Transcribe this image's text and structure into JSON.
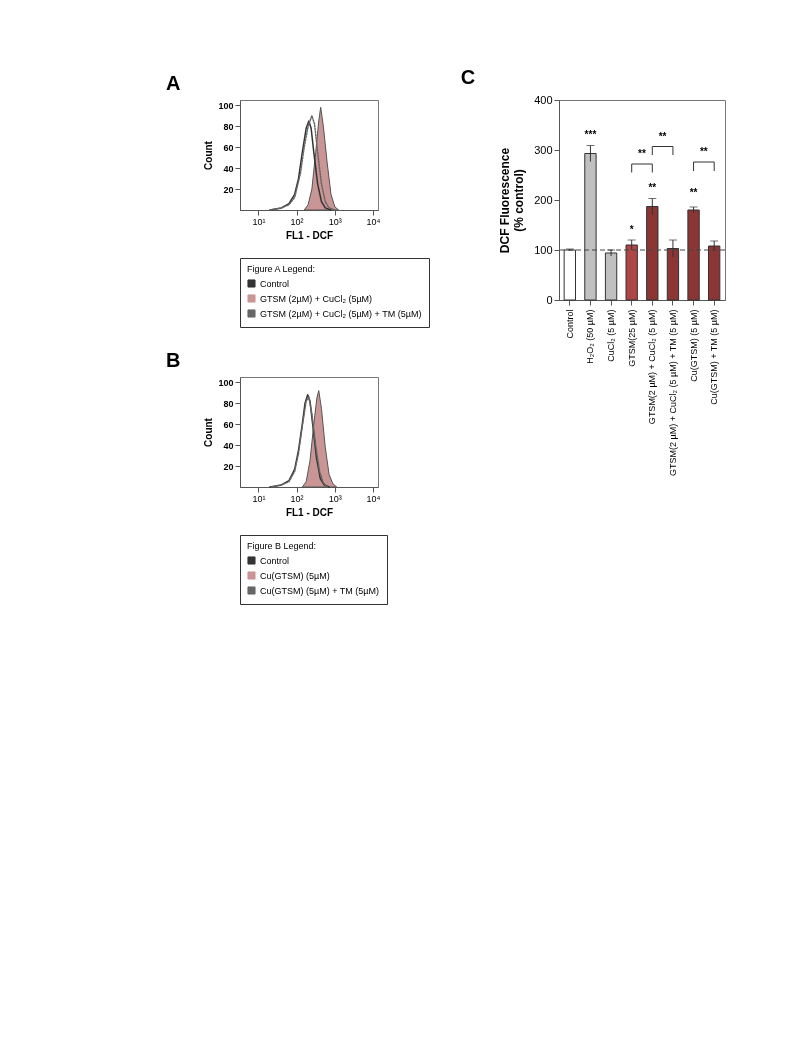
{
  "chart_data": [
    {
      "type": "line",
      "title": "A",
      "xlabel": "FL1 - DCF",
      "ylabel": "Count",
      "legend_title": "Figure A Legend:",
      "legend": "bottom",
      "log": "x",
      "xlim": [
        3.3,
        13500
      ],
      "ylim": [
        0,
        105
      ],
      "xticks": [
        {
          "value": 10,
          "label": "10¹"
        },
        {
          "value": 100,
          "label": "10²"
        },
        {
          "value": 1000,
          "label": "10³"
        },
        {
          "value": 10000,
          "label": "10⁴"
        }
      ],
      "yticks": [
        20,
        40,
        60,
        80,
        100
      ],
      "series": [
        {
          "name": "Control",
          "type": "line",
          "color": "#333333",
          "line_style": "solid",
          "x": [
            20,
            40,
            63,
            89,
            112,
            141,
            178,
            209,
            240,
            282,
            355,
            447,
            562,
            794
          ],
          "values": [
            0,
            2,
            6,
            15,
            30,
            55,
            78,
            85,
            78,
            55,
            25,
            8,
            2,
            0
          ]
        },
        {
          "name": "GTSM (2µM) + CuCl₂ (5µM)",
          "type": "area",
          "color": "#c99595",
          "x": [
            158,
            200,
            251,
            316,
            380,
            427,
            501,
            631,
            794,
            1000,
            1259
          ],
          "values": [
            0,
            5,
            20,
            55,
            85,
            98,
            80,
            45,
            15,
            3,
            0
          ]
        },
        {
          "name": "GTSM (2µM) + CuCl₂ (5µM) + TM (5µM)",
          "type": "line",
          "color": "#666666",
          "line_style": "dotted",
          "x": [
            20,
            40,
            63,
            89,
            126,
            158,
            200,
            251,
            295,
            355,
            447,
            562,
            708,
            1000
          ],
          "values": [
            0,
            2,
            5,
            12,
            35,
            60,
            80,
            90,
            82,
            55,
            25,
            8,
            2,
            0
          ]
        }
      ]
    },
    {
      "type": "line",
      "title": "B",
      "xlabel": "FL1 - DCF",
      "ylabel": "Count",
      "legend_title": "Figure B Legend:",
      "legend": "bottom",
      "log": "x",
      "xlim": [
        3.3,
        13500
      ],
      "ylim": [
        0,
        105
      ],
      "xticks": [
        {
          "value": 10,
          "label": "10¹"
        },
        {
          "value": 100,
          "label": "10²"
        },
        {
          "value": 1000,
          "label": "10³"
        },
        {
          "value": 10000,
          "label": "10⁴"
        }
      ],
      "yticks": [
        20,
        40,
        60,
        80,
        100
      ],
      "series": [
        {
          "name": "Control",
          "type": "line",
          "color": "#333333",
          "line_style": "solid",
          "x": [
            20,
            40,
            63,
            89,
            112,
            141,
            166,
            195,
            224,
            263,
            331,
            417,
            525,
            708
          ],
          "values": [
            0,
            2,
            6,
            17,
            35,
            60,
            80,
            88,
            82,
            60,
            28,
            8,
            2,
            0
          ]
        },
        {
          "name": "Cu(GTSM) (5µM)",
          "type": "area",
          "color": "#c99595",
          "x": [
            141,
            178,
            224,
            282,
            339,
            380,
            447,
            562,
            708,
            891,
            1122
          ],
          "values": [
            0,
            5,
            25,
            60,
            85,
            92,
            75,
            38,
            12,
            3,
            0
          ]
        },
        {
          "name": "Cu(GTSM) (5µM) + TM (5µM)",
          "type": "line",
          "color": "#666666",
          "line_style": "dotted",
          "x": [
            22.4,
            40,
            63,
            89,
            112,
            141,
            178,
            209,
            251,
            316,
            398,
            501,
            631
          ],
          "values": [
            0,
            2,
            5,
            15,
            32,
            58,
            82,
            86,
            70,
            40,
            15,
            4,
            0
          ]
        }
      ]
    },
    {
      "type": "bar",
      "title": "C",
      "ylabel": "DCF Fluorescence\n(% control)",
      "ylim": [
        0,
        400
      ],
      "yticks": [
        0,
        100,
        200,
        300,
        400
      ],
      "categories": [
        "Control",
        "H₂O₂ (50 µM)",
        "CuCl₂ (5 µM)",
        "GTSM(25 µM)",
        "GTSM(2 µM) + CuCl₂ (5 µM)",
        "GTSM(2 µM) + CuCl₂ (5 µM) + TM (5 µM)",
        "Cu(GTSM) (5 µM)",
        "Cu(GTSM) + TM (5 µM)"
      ],
      "values": [
        100,
        293,
        94,
        110,
        187,
        103,
        180,
        108
      ],
      "errors": [
        2,
        16,
        6,
        10,
        16,
        17,
        6,
        10
      ],
      "colors": [
        "#ffffff",
        "#c0c0c0",
        "#c0c0c0",
        "#b04545",
        "#8b3535",
        "#8b3535",
        "#8b3535",
        "#8b3535"
      ],
      "ref_lines": [
        {
          "axis": "y",
          "value": 100,
          "line_style": "dashed",
          "color": "#444444"
        }
      ],
      "annotations": [
        "***",
        "*",
        "**",
        "**",
        "**",
        "**",
        "**"
      ]
    }
  ]
}
